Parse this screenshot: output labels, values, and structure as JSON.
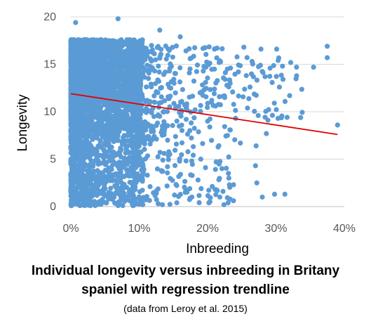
{
  "chart_data": {
    "type": "scatter",
    "xlabel": "Inbreeding",
    "ylabel": "Longevity",
    "xlim": [
      0,
      0.4
    ],
    "ylim": [
      0,
      20
    ],
    "x_ticks": [
      "0%",
      "10%",
      "20%",
      "30%",
      "40%"
    ],
    "y_ticks": [
      "0",
      "5",
      "10",
      "15",
      "20"
    ],
    "grid": "horizontal",
    "legend": "none",
    "point_color": "#5B9BD5",
    "trend_color": "#E00000",
    "trendline": {
      "x": [
        0.0,
        0.39
      ],
      "y": [
        11.9,
        7.6
      ]
    },
    "notable_points": [
      {
        "x": 0.007,
        "y": 19.4
      },
      {
        "x": 0.069,
        "y": 19.8
      },
      {
        "x": 0.13,
        "y": 18.6
      },
      {
        "x": 0.16,
        "y": 17.9
      },
      {
        "x": 0.21,
        "y": 16.6
      },
      {
        "x": 0.253,
        "y": 16.8
      },
      {
        "x": 0.278,
        "y": 16.6
      },
      {
        "x": 0.301,
        "y": 16.6
      },
      {
        "x": 0.375,
        "y": 16.9
      },
      {
        "x": 0.375,
        "y": 15.7
      },
      {
        "x": 0.355,
        "y": 14.7
      },
      {
        "x": 0.33,
        "y": 14.7
      },
      {
        "x": 0.305,
        "y": 12.6
      },
      {
        "x": 0.32,
        "y": 11.7
      },
      {
        "x": 0.265,
        "y": 15.3
      },
      {
        "x": 0.274,
        "y": 9.6
      },
      {
        "x": 0.303,
        "y": 9.3
      },
      {
        "x": 0.39,
        "y": 8.6
      },
      {
        "x": 0.286,
        "y": 7.7
      },
      {
        "x": 0.271,
        "y": 6.4
      },
      {
        "x": 0.27,
        "y": 4.3
      },
      {
        "x": 0.272,
        "y": 2.5
      },
      {
        "x": 0.298,
        "y": 1.3
      },
      {
        "x": 0.313,
        "y": 1.3
      },
      {
        "x": 0.28,
        "y": 1.0
      },
      {
        "x": 0.238,
        "y": 2.3
      },
      {
        "x": 0.218,
        "y": 1.0
      },
      {
        "x": 0.23,
        "y": 0.4
      },
      {
        "x": 0.202,
        "y": 0.4
      },
      {
        "x": 0.186,
        "y": 2.8
      },
      {
        "x": 0.177,
        "y": 1.0
      },
      {
        "x": 0.155,
        "y": 0.4
      },
      {
        "x": 0.221,
        "y": 4.0
      },
      {
        "x": 0.19,
        "y": 5.0
      },
      {
        "x": 0.2,
        "y": 9.0
      },
      {
        "x": 0.189,
        "y": 12.0
      },
      {
        "x": 0.225,
        "y": 11.5
      },
      {
        "x": 0.241,
        "y": 9.3
      },
      {
        "x": 0.21,
        "y": 14.5
      },
      {
        "x": 0.245,
        "y": 14.2
      },
      {
        "x": 0.284,
        "y": 13.7
      },
      {
        "x": 0.262,
        "y": 12.6
      },
      {
        "x": 0.233,
        "y": 13.0
      },
      {
        "x": 0.248,
        "y": 6.7
      },
      {
        "x": 0.229,
        "y": 7.5
      }
    ]
  },
  "caption": {
    "title_line1": "Individual longevity versus inbreeding in Britany",
    "title_line2": "spaniel with regression trendline",
    "source": "(data from Leroy et al. 2015)"
  }
}
